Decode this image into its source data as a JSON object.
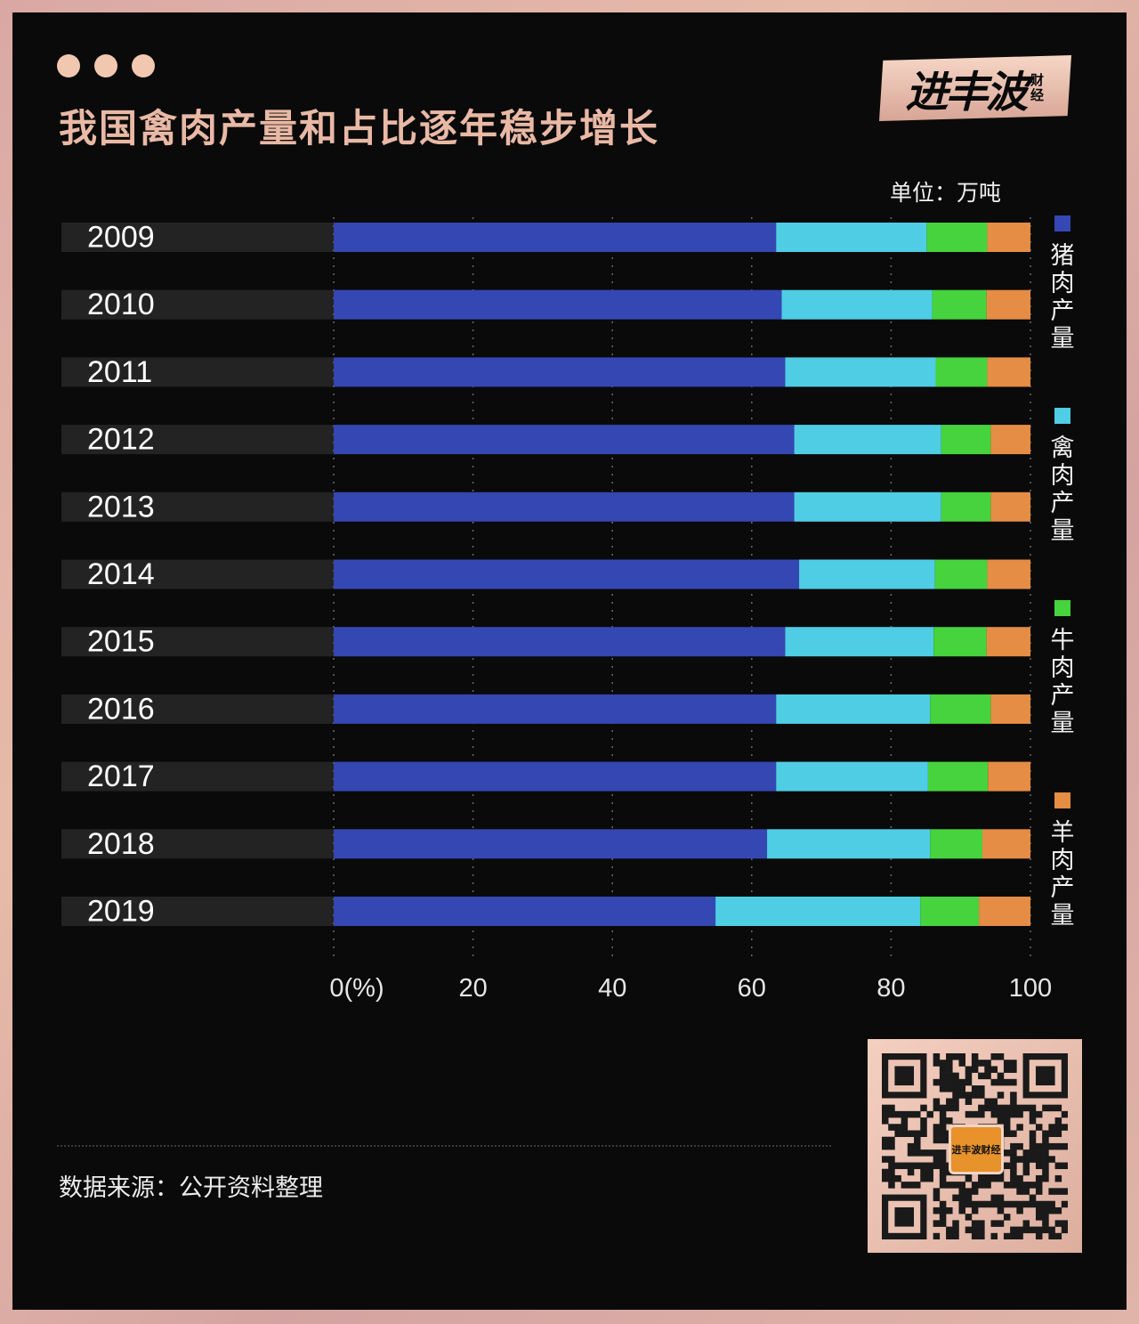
{
  "header": {
    "title": "我国禽肉产量和占比逐年稳步增长",
    "logo_text": "进丰波",
    "logo_sub": "财经"
  },
  "unit_label": "单位：万吨",
  "chart_data": {
    "type": "bar",
    "orientation": "horizontal",
    "stacked": "percent",
    "categories": [
      "2009",
      "2010",
      "2011",
      "2012",
      "2013",
      "2014",
      "2015",
      "2016",
      "2017",
      "2018",
      "2019"
    ],
    "series": [
      {
        "name": "猪肉产量",
        "color": "#3547b2",
        "values": [
          63.5,
          64.3,
          64.8,
          66.1,
          66.1,
          66.8,
          64.8,
          63.5,
          63.5,
          62.2,
          54.8
        ]
      },
      {
        "name": "禽肉产量",
        "color": "#4fcde5",
        "values": [
          21.6,
          21.6,
          21.6,
          21.1,
          21.1,
          19.5,
          21.3,
          22.1,
          21.8,
          23.4,
          29.4
        ]
      },
      {
        "name": "牛肉产量",
        "color": "#46d33d",
        "values": [
          8.7,
          7.8,
          7.4,
          7.1,
          7.1,
          7.5,
          7.6,
          8.7,
          8.6,
          7.5,
          8.4
        ]
      },
      {
        "name": "羊肉产量",
        "color": "#e58d45",
        "values": [
          6.2,
          6.3,
          6.2,
          5.7,
          5.7,
          6.2,
          6.3,
          5.7,
          6.1,
          6.9,
          7.4
        ]
      }
    ],
    "x_ticks": [
      "0(%)",
      "20",
      "40",
      "60",
      "80",
      "100"
    ],
    "xlim": [
      0,
      100
    ],
    "grid": "vertical dotted",
    "legend_position": "right"
  },
  "footer": {
    "source": "数据来源：公开资料整理",
    "qr_badge": "进丰波财经"
  },
  "colors": {
    "background": "#0a0a0a",
    "frame": "#dcaea6",
    "title": "#e9b9a5",
    "row_band": "#232323"
  }
}
